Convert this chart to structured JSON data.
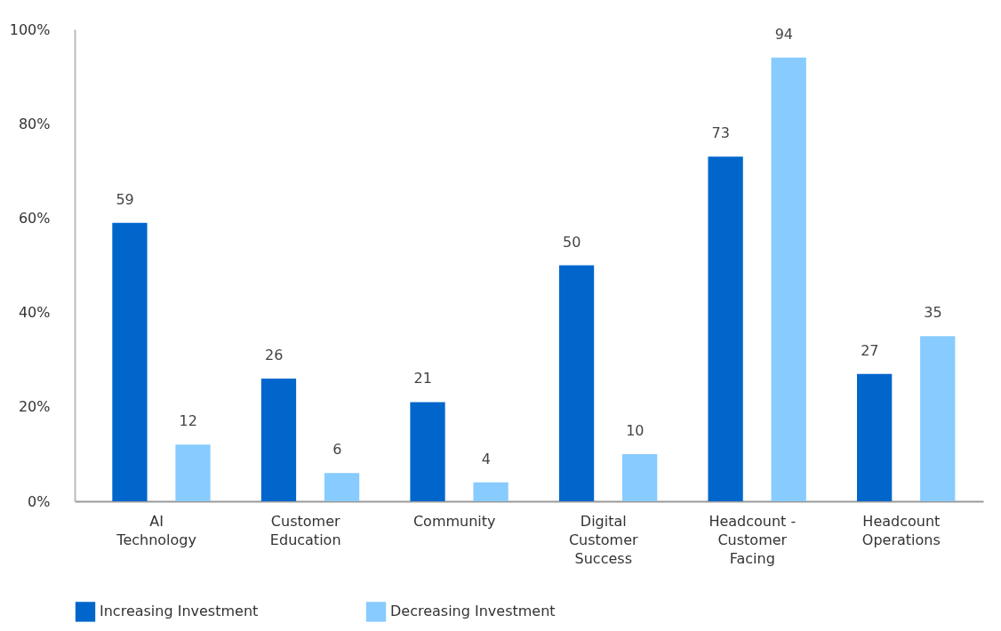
{
  "chart_data": {
    "type": "bar",
    "categories": [
      "AI Technology",
      "Customer Education",
      "Community",
      "Digital Customer Success",
      "Headcount - Customer Facing",
      "Headcount Operations"
    ],
    "series": [
      {
        "name": "Increasing Investment",
        "color": "#0066cc",
        "values": [
          59,
          26,
          21,
          50,
          73,
          27
        ]
      },
      {
        "name": "Decreasing Investment",
        "color": "#87cbff",
        "values": [
          12,
          6,
          4,
          10,
          94,
          35
        ]
      }
    ],
    "ylim": [
      0,
      100
    ],
    "yticks": [
      {
        "value": 0,
        "label": "0%"
      },
      {
        "value": 20,
        "label": "20%"
      },
      {
        "value": 40,
        "label": "40%"
      },
      {
        "value": 60,
        "label": "60%"
      },
      {
        "value": 80,
        "label": "80%"
      },
      {
        "value": 100,
        "label": "100%"
      }
    ],
    "data_labels": true,
    "grid": false,
    "legend": "bottom"
  }
}
